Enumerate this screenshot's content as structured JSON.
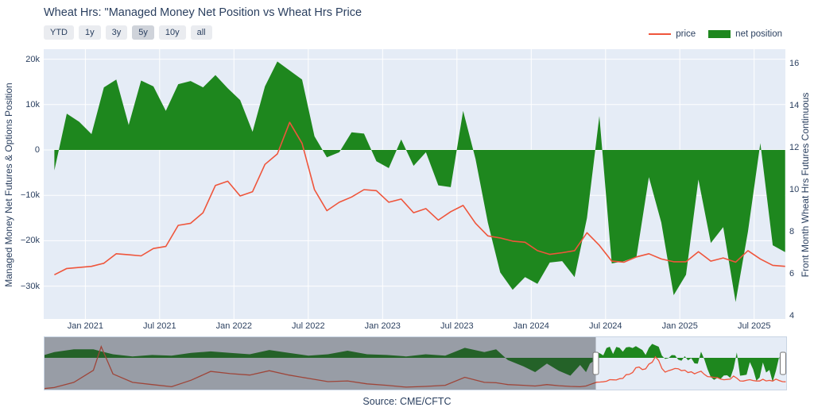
{
  "title": "Wheat Hrs: \"Managed Money Net Position vs Wheat Hrs Price",
  "source": "Source: CME/CFTC",
  "range_buttons": {
    "labels": [
      "YTD",
      "1y",
      "3y",
      "5y",
      "10y",
      "all"
    ],
    "active": "5y"
  },
  "legend": {
    "items": [
      {
        "label": "price",
        "swatch": "line",
        "color": "#EF553B"
      },
      {
        "label": "net position",
        "swatch": "area",
        "color": "#1E871E"
      }
    ]
  },
  "colors": {
    "net_position_fill": "#1E871E",
    "price_line": "#EF553B",
    "plot_background": "#e5ecf6",
    "gridline": "#ffffff",
    "font": "#2a3f5f",
    "slider_mask": "rgba(45,48,56,0.42)"
  },
  "chart_data": {
    "type": "area+line",
    "title": "Wheat Hrs: \"Managed Money Net Position vs Wheat Hrs Price",
    "grid": true,
    "legend_position": "top-right",
    "x_months": [
      "2020-10",
      "2020-11",
      "2020-12",
      "2021-01",
      "2021-02",
      "2021-03",
      "2021-04",
      "2021-05",
      "2021-06",
      "2021-07",
      "2021-08",
      "2021-09",
      "2021-10",
      "2021-11",
      "2021-12",
      "2022-01",
      "2022-02",
      "2022-03",
      "2022-04",
      "2022-05",
      "2022-06",
      "2022-07",
      "2022-08",
      "2022-09",
      "2022-10",
      "2022-11",
      "2022-12",
      "2023-01",
      "2023-02",
      "2023-03",
      "2023-04",
      "2023-05",
      "2023-06",
      "2023-07",
      "2023-08",
      "2023-09",
      "2023-10",
      "2023-11",
      "2023-12",
      "2024-01",
      "2024-02",
      "2024-03",
      "2024-04",
      "2024-05",
      "2024-06",
      "2024-07",
      "2024-08",
      "2024-09",
      "2024-10",
      "2024-11",
      "2024-12",
      "2025-01",
      "2025-02",
      "2025-03",
      "2025-04",
      "2025-05",
      "2025-06",
      "2025-07",
      "2025-08",
      "2025-09"
    ],
    "series": [
      {
        "name": "net position",
        "yaxis": "left",
        "render": "area",
        "color": "#1E871E",
        "unit": "contracts",
        "values": [
          -4500,
          8000,
          6200,
          3500,
          13800,
          15500,
          5500,
          15300,
          14000,
          8600,
          14500,
          15200,
          13800,
          16500,
          13600,
          11000,
          4000,
          14000,
          19500,
          17500,
          15500,
          3000,
          -1600,
          -500,
          3900,
          3600,
          -2500,
          -4000,
          2300,
          -3500,
          -500,
          -7800,
          -8200,
          8600,
          -2000,
          -16000,
          -27000,
          -30800,
          -28000,
          -29500,
          -24800,
          -24500,
          -28000,
          -15000,
          7500,
          -25000,
          -24500,
          -23500,
          -6000,
          -16000,
          -32000,
          -27500,
          -6500,
          -20500,
          -17000,
          -33500,
          -18000,
          1500,
          -21000,
          -22500
        ]
      },
      {
        "name": "price",
        "yaxis": "right",
        "render": "line",
        "color": "#EF553B",
        "unit": "$/bu",
        "values": [
          5.95,
          6.25,
          6.3,
          6.35,
          6.5,
          6.95,
          6.9,
          6.85,
          7.2,
          7.3,
          8.3,
          8.4,
          8.9,
          10.2,
          10.4,
          9.7,
          9.9,
          11.2,
          11.7,
          13.2,
          12.2,
          10.0,
          9.0,
          9.4,
          9.65,
          10.0,
          9.95,
          9.4,
          9.55,
          8.9,
          9.1,
          8.55,
          8.95,
          9.25,
          8.4,
          7.8,
          7.7,
          7.55,
          7.5,
          7.1,
          6.92,
          7.0,
          7.1,
          7.95,
          7.35,
          6.6,
          6.55,
          6.8,
          6.95,
          6.7,
          6.57,
          6.57,
          7.05,
          6.6,
          6.75,
          6.55,
          7.1,
          6.7,
          6.4,
          6.35
        ]
      }
    ],
    "yaxis_left": {
      "title": "Managed Money Net Futures & Options Position",
      "tick_labels": [
        "20k",
        "10k",
        "0",
        "−10k",
        "−20k",
        "−30k"
      ],
      "tick_values": [
        20000,
        10000,
        0,
        -10000,
        -20000,
        -30000
      ],
      "range": [
        -37200,
        22200
      ]
    },
    "yaxis_right": {
      "title": "Front Month Wheat Hrs Futures Continuous",
      "tick_labels": [
        "16",
        "14",
        "12",
        "10",
        "8",
        "6",
        "4"
      ],
      "tick_values": [
        16,
        14,
        12,
        10,
        8,
        6,
        4
      ],
      "range": [
        3.7,
        16.7
      ]
    },
    "xaxis": {
      "tick_labels": [
        "Jan 2021",
        "Jul 2021",
        "Jan 2022",
        "Jul 2022",
        "Jan 2023",
        "Jul 2023",
        "Jan 2024",
        "Jul 2024",
        "Jan 2025",
        "Jul 2025"
      ],
      "tick_t": [
        2021.0,
        2021.5,
        2022.0,
        2022.5,
        2023.0,
        2023.5,
        2024.0,
        2024.5,
        2025.0,
        2025.5
      ],
      "range_t": [
        2020.72,
        2025.71
      ]
    },
    "rangeslider": {
      "range_t": [
        2006.75,
        2025.72
      ],
      "selected_t": [
        2020.85,
        2025.72
      ],
      "history_t": [
        2006.75,
        2007.0,
        2007.5,
        2008.0,
        2008.2,
        2008.5,
        2009.0,
        2009.5,
        2010.0,
        2010.5,
        2011.0,
        2011.5,
        2012.0,
        2012.5,
        2013.0,
        2013.5,
        2014.0,
        2014.5,
        2015.0,
        2015.5,
        2016.0,
        2016.5,
        2017.0,
        2017.5,
        2018.0,
        2018.3,
        2018.6,
        2019.0,
        2019.3,
        2019.6,
        2019.9,
        2020.2,
        2020.45,
        2020.6,
        2020.7
      ],
      "history_net": [
        4000,
        8000,
        12000,
        12000,
        9000,
        5000,
        2000,
        4000,
        3000,
        7000,
        9000,
        7000,
        5000,
        11000,
        7000,
        3000,
        5000,
        10000,
        5000,
        4000,
        2000,
        5000,
        3000,
        14000,
        8000,
        12000,
        -3000,
        -12000,
        -20000,
        -8000,
        -18000,
        -25000,
        -10000,
        -20000,
        -8000
      ],
      "history_price": [
        4.5,
        4.8,
        6.2,
        9.5,
        16.0,
        8.5,
        6.2,
        5.6,
        5.0,
        6.8,
        9.2,
        8.6,
        8.2,
        9.4,
        8.2,
        7.3,
        6.4,
        6.6,
        5.8,
        5.4,
        4.9,
        5.1,
        5.4,
        7.6,
        6.2,
        6.1,
        5.6,
        5.4,
        5.2,
        5.6,
        5.3,
        5.1,
        5.0,
        5.2,
        5.6
      ]
    }
  }
}
